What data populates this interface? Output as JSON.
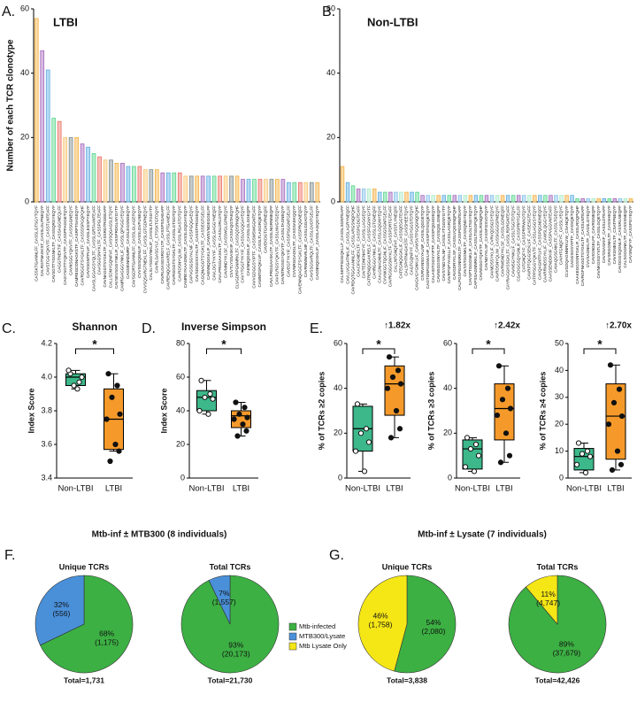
{
  "chart_data": [
    {
      "type": "bar",
      "panel": "A.",
      "title": "LTBI",
      "ylabel": "Number of each TCR clonotype",
      "ylim": [
        0,
        60
      ],
      "yticks": [
        0,
        20,
        40,
        60
      ],
      "colors": [
        "#f5b041",
        "#a569bd",
        "#5dade2",
        "#58d68d",
        "#ec7063",
        "#f8c471",
        "#7f8c8d"
      ],
      "categories": [
        "CASSKTGANNLFF_CASSLGTSGYTQYF",
        "CALRGTNAGKST_CASSLGLPNEQYF",
        "CAVSTGGYQKVTF_CASSTLNTEAFF",
        "CAVSGTTYGGNKLTF_CASSQRGYEQYF",
        "CAGGTNEKTIF_CASSAGGNEQLFF",
        "CAGYSGTTYQKVTF_CASSPFAGGETQYF",
        "CAVNSGGYQKVTF_CASSGGNEQYF",
        "CAMREGDDNAGKSTF_CASRPTSAGEQYF",
        "CAVRDGGTSYGKLTF_CASSSSPGQPQHF",
        "CAVSSGNTPLVF_CASSLEGSPYEQYF",
        "CAASLGGAGSYQLTF_CASSLGRTAANTEAFF",
        "CAASGGSNYKLTF_CASSPGLTEAFF",
        "CAVNAGGTSYGKLTF_CASSRGTRGEEAFF",
        "CALLSDNYGQNFVF_CASSQGAGSLETQYF",
        "CAVSEVSGGYNKLIF_CASSPRDGLNYGYTF",
        "CAMRGAGGGYNKLIF_CASSLQPVGGYEQYF",
        "CAGMSNNDMRF_CASSLEGSNSEQYF",
        "CAVSGDRTGANNLFF_CASSLGLAGEPQYF",
        "CVVSGSQGNLIF_CASSLGVPLNEQYF",
        "CVVSQSARGTNEKLFF_CASSLGTGDPNEQYF",
        "CALSLYSGGYNKLIF_CASSLTLTGGYTF",
        "CAVRLGASGYLF_CTSSKTGTDQYF",
        "CAVRLGASGSRGYLTF_CASSPSGAEAFF",
        "CAVRENQGGAKRELF_CASSLPTGANEKLFF",
        "CAVRGGGTSYGKLTF_CASSLGTGDTQYF",
        "CAVRDSNYQLIW_CASSLRGASTDTQYF",
        "CAMREYKAAGNKLTF_CASSLGQGAYEQYF",
        "CAPVGSGSGYALNF_CASSPGQGAEQYF",
        "CAVSDGGSSYKLTF_CASSTFRGGEQYF",
        "CAGQNAGGTSYGKLTF_CASSEGTGELFF",
        "CAENNQGGKLIF_CAWSVNGEGGELFF",
        "CAVLDGTYKYIF_CASSLGAGGYNEQFF",
        "CAVLPRGGAASKLTF_CASSLDRLDTQYF",
        "CAVMNDYKLSF_CASSWGLGPNEQYF",
        "CVVTLYSSASKIIF_CASSAQGTAEQYF",
        "CLVGDRPGNNRKLTF_CASSQDSRNQPQHF",
        "CAVYTGGTYKYIF_CASSLVGQGAYEQYF",
        "CAENNQGGKLIF_CASSLGLGGEQFF",
        "CAVVGDGGSYIPTF_CASSMSWGGNTEAFF",
        "CAMNTGFQKLVF_CASSLTLAGGRQETQYF",
        "CAVEKDGTGKGRNEQFF",
        "CAVLPRGGAASKLTF_CASSLNGRNNEQFF",
        "CAVPLRGSYQKVTF_CASSLNVGTGEQYF",
        "CAVNTRGSGYQKVTF_CASSLTAGNEQYF",
        "CAVEGTYKYIF_CASSPSGGNTGELFF",
        "CVVNRGGADGLTF_CASSSAEKQQYF",
        "CAVENNQAGGTSYGKLTF_CASSPRQGNEQFF",
        "CAVRNNNARLMF_CASSLGGADTQYF",
        "CAVSSGSARQLTF_CASSLGVDTGELFF",
        "CAGNNQGGKLIF_CASSLAGQGYEQYF"
      ],
      "values": [
        57,
        47,
        41,
        26,
        25,
        20,
        20,
        20,
        18,
        17,
        15,
        14,
        13,
        13,
        12,
        12,
        11,
        11,
        11,
        10,
        10,
        10,
        9,
        9,
        9,
        9,
        8,
        8,
        8,
        8,
        8,
        8,
        8,
        8,
        8,
        8,
        7,
        7,
        7,
        7,
        7,
        7,
        7,
        7,
        6,
        6,
        6,
        6,
        6,
        6
      ]
    },
    {
      "type": "bar",
      "panel": "B.",
      "title": "Non-LTBI",
      "ylim": [
        0,
        60
      ],
      "yticks": [
        0,
        20,
        40,
        60
      ],
      "colors": [
        "#f5b041",
        "#5dade2",
        "#58d68d",
        "#a569bd",
        "#85c1e9",
        "#abebc6"
      ],
      "categories": [
        "CALSEPFSDGQKLLF_CASSLSGNTEAFF",
        "CAVLLVGGATNKLIF_CASSLAGRYNEQFF",
        "CAVRDQTGGAANNLFF_CASSLARGSNQPQHF",
        "CAACIFGNEKLTF_CASSPGDGTEAFF",
        "CAVTEDNFNKFYF_CASSLLAGGEQYF",
        "CATRENQGGAKRELF_CASSFGGNYGYTF",
        "CAHRGGGYNKLIF_CASSLGTGNEQFF",
        "CAALGNAGNMLTF_CASSLGQGNYEQYF",
        "CVVNKGGTQGNLIF_CASSGSGNTGELFF",
        "CAVRGSGGSNYKLTF_CASSPDRTGTEAFF",
        "CALLNTGNQFVF_CASSTLYNEQFF",
        "CATEGNQGGKLIF_CASSQEGGTEAFF",
        "CALSPHTNAGKSTF_CASSHEETQYF",
        "CAGTGQNFYF_CASSYGGSTDTQYF",
        "CAVGVGYGNKLVF_CAWSVTPGQGNQPQHF",
        "CIVRVANSGYALNF_CASSLQGGETQYF",
        "CAGTGNFGGNVLHF_CASSPSTGSQETQYF",
        "CALAIGTGGSYIPTF_CASSPQGGDEQYF",
        "CAVNSGGSNYKLTF_CASSQGLGNEQFF",
        "CAVSYNGYALNF_CASSLYTGGNYGYTF",
        "CAVRPSPYASGLLF_CASSLAGRQETQYF",
        "CAVGDRYKLSF_CASSLVQGSNQPQHF",
        "CALPGSPGGNNRKLTF_CASSPGDRNTEAFF",
        "CAVSSTGGNKLTF_CASSQNGYEQYF",
        "CAVSPTGGGNKLIF_CASSLGLTSGYEQYF",
        "CAPSSAGNNRKLIF_CASSLTSGGPQETQYF",
        "CAVNSGGYQKVTF_CASSLRSNQPQHF",
        "CAVNDYKLSF_CASSFGSVDTQYF",
        "CAVMDSSYKLIF_CVRVQDSGSYEQYF",
        "CAVRDSNYQLIW_CASSIGGGSPNEQYF",
        "CAVRMSNDYKLSF_CASSLGDNEQFF",
        "CAYRAGGKSSGKLTF_CASSLRDRGNTEAFF",
        "CAVNSGYNKLIF_CASSLTGGTDTQYF",
        "CGADGGSQYGNLIF_CASSPRPTGELFF",
        "CATGNQFYF_CASSPRRWADTQYF",
        "CAVRPTQGGSEKLVF_CAISESGTEAFF",
        "CATPPSGGYQKVTF_CASSLAGGSYEQYF",
        "CAVQAGNTPLVF_CASSPQGNDNEQFF",
        "CAARRMDSSYKLIF_CAWSLQGGYEQYF",
        "CAASSENDDKIIF_CASSPVGGVNTEAFF",
        "CAVAQGSGNKLTF_CASSLTGEQYF",
        "CAVHTGNQFYF_CASSLYEQYF",
        "CLVGDQAGNNRKLIW_CSANQETQYF",
        "CAGGSGSYIPTF_CASSQETQYF",
        "CAAKEGGSSNTGKLIF_CASSLRDQPQHF",
        "CAVRGFNAGGTSYGKLTF_CASSLNTEAFF",
        "CVVSAGNKLTF_CASSLGYEQYF",
        "CAVIGNGELFF_CAVRGNEQFF",
        "CAVNKGSGYSTLTF_CASSLGQETQYF",
        "CAVSSASKIIF_CASSLDTEAFF",
        "CAVSRGGNKLTF_CASSHEQYF",
        "CAVKGNEKLTF_CSATPNEQYF",
        "CAVDGGSQGNLIF_CASSRLNEQFF",
        "CALSGGGNKLTF_CASSSNEQFF",
        "CAVSNQFYF_CASSPGYEQYF"
      ],
      "values": [
        11,
        6,
        5,
        4,
        4,
        4,
        4,
        3,
        3,
        3,
        3,
        3,
        3,
        3,
        3,
        2,
        2,
        2,
        2,
        2,
        2,
        2,
        2,
        2,
        2,
        2,
        2,
        2,
        2,
        2,
        2,
        2,
        2,
        2,
        2,
        2,
        2,
        2,
        2,
        2,
        2,
        2,
        2,
        2,
        1,
        1,
        1,
        1,
        1,
        1,
        1,
        1,
        1,
        1,
        1
      ]
    },
    {
      "type": "box",
      "panel": "C.",
      "title": "Shannon",
      "ylabel": "Index Score",
      "significance": "*",
      "categories": [
        "Non-LTBI",
        "LTBI"
      ],
      "ylim": [
        3.4,
        4.2
      ],
      "yticks": [
        3.4,
        3.6,
        3.8,
        {
          "value": 4,
          "label": "4.0"
        },
        4.2
      ],
      "boxes": [
        {
          "color": "#3cb88a",
          "min": 3.93,
          "q1": 3.95,
          "median": 4.0,
          "q3": 4.02,
          "max": 4.04,
          "points": [
            4.02,
            3.97,
            3.95,
            4.0,
            4.04,
            3.93
          ]
        },
        {
          "color": "#f59a2a",
          "min": 3.56,
          "q1": 3.57,
          "median": 3.75,
          "q3": 3.93,
          "max": 4.02,
          "points": [
            4.02,
            3.95,
            3.88,
            3.78,
            3.75,
            3.6,
            3.56,
            3.5
          ]
        }
      ]
    },
    {
      "type": "box",
      "panel": "D.",
      "title": "Inverse Simpson",
      "ylabel": "Index Score",
      "significance": "*",
      "categories": [
        "Non-LTBI",
        "LTBI"
      ],
      "ylim": [
        0,
        80
      ],
      "yticks": [
        0,
        20,
        40,
        60,
        80
      ],
      "boxes": [
        {
          "color": "#3cb88a",
          "min": 38,
          "q1": 40,
          "median": 48,
          "q3": 52,
          "max": 58,
          "points": [
            58,
            50,
            48,
            47,
            40,
            38
          ]
        },
        {
          "color": "#f59a2a",
          "min": 25,
          "q1": 30,
          "median": 37,
          "q3": 40,
          "max": 45,
          "points": [
            45,
            42,
            38,
            36,
            35,
            32,
            28,
            25
          ]
        }
      ]
    },
    {
      "type": "box",
      "panel": "E.",
      "annotation": "↑1.82x",
      "ylabel": "% of TCRs ≥2 copies",
      "significance": "*",
      "categories": [
        "Non-LTBI",
        "LTBI"
      ],
      "ylim": [
        0,
        60
      ],
      "yticks": [
        0,
        20,
        40,
        60
      ],
      "boxes": [
        {
          "color": "#3cb88a",
          "min": 3,
          "q1": 12,
          "median": 22,
          "q3": 32,
          "max": 33,
          "points": [
            33,
            22,
            20,
            16,
            12,
            3
          ]
        },
        {
          "color": "#f59a2a",
          "min": 18,
          "q1": 28,
          "median": 42,
          "q3": 50,
          "max": 54,
          "points": [
            54,
            48,
            45,
            42,
            40,
            30,
            22,
            18
          ]
        }
      ]
    },
    {
      "type": "box",
      "annotation": "↑2.42x",
      "ylabel": "% of TCRs ≥3 copies",
      "significance": "*",
      "categories": [
        "Non-LTBI",
        "LTBI"
      ],
      "ylim": [
        0,
        60
      ],
      "yticks": [
        0,
        20,
        40,
        60
      ],
      "boxes": [
        {
          "color": "#3cb88a",
          "min": 3,
          "q1": 4,
          "median": 13,
          "q3": 17,
          "max": 18,
          "points": [
            18,
            15,
            13,
            10,
            5,
            3
          ]
        },
        {
          "color": "#f59a2a",
          "min": 7,
          "q1": 17,
          "median": 31,
          "q3": 42,
          "max": 50,
          "points": [
            50,
            40,
            35,
            31,
            28,
            20,
            10,
            7
          ]
        }
      ]
    },
    {
      "type": "box",
      "annotation": "↑2.70x",
      "ylabel": "% of TCRs ≥4 copies",
      "significance": "*",
      "categories": [
        "Non-LTBI",
        "LTBI"
      ],
      "ylim": [
        0,
        50
      ],
      "yticks": [
        0,
        10,
        20,
        30,
        40,
        50
      ],
      "boxes": [
        {
          "color": "#3cb88a",
          "min": 2,
          "q1": 3,
          "median": 8,
          "q3": 11,
          "max": 13,
          "points": [
            13,
            10,
            9,
            8,
            5,
            2
          ]
        },
        {
          "color": "#f59a2a",
          "min": 3,
          "q1": 7,
          "median": 23,
          "q3": 35,
          "max": 42,
          "points": [
            42,
            33,
            28,
            23,
            20,
            10,
            5,
            3
          ]
        }
      ]
    },
    {
      "type": "pie",
      "panel": "F.",
      "title": "Mtb-inf ± MTB300 (8 individuals)",
      "pies": [
        {
          "title": "Unique TCRs",
          "values": [
            1175,
            556
          ],
          "percent_labels": [
            "68%",
            "32%"
          ],
          "value_labels": [
            "(1,175)",
            "(556)"
          ],
          "colors": [
            "#3cb043",
            "#4a90d9"
          ],
          "total_label": "Total=1,731"
        },
        {
          "title": "Total TCRs",
          "values": [
            20173,
            1557
          ],
          "percent_labels": [
            "93%",
            "7%"
          ],
          "value_labels": [
            "(20,173)",
            "(1,557)"
          ],
          "colors": [
            "#3cb043",
            "#4a90d9"
          ],
          "total_label": "Total=21,730"
        }
      ]
    },
    {
      "type": "pie",
      "panel": "G.",
      "title": "Mtb-inf ± Lysate (7 individuals)",
      "pies": [
        {
          "title": "Unique TCRs",
          "values": [
            2080,
            1758
          ],
          "percent_labels": [
            "54%",
            "46%"
          ],
          "value_labels": [
            "(2,080)",
            "(1,758)"
          ],
          "colors": [
            "#3cb043",
            "#f5e616"
          ],
          "total_label": "Total=3,838"
        },
        {
          "title": "Total TCRs",
          "values": [
            37679,
            4747
          ],
          "percent_labels": [
            "89%",
            "11%"
          ],
          "value_labels": [
            "(37,679)",
            "(4,747)"
          ],
          "colors": [
            "#3cb043",
            "#f5e616"
          ],
          "total_label": "Total=42,426"
        }
      ]
    }
  ],
  "legend": [
    {
      "name": "Mtb-infected",
      "color": "#3cb043"
    },
    {
      "name": "MTB300/Lysate",
      "color": "#4a90d9"
    },
    {
      "name": "Mtb Lysate Only",
      "color": "#f5e616"
    }
  ]
}
